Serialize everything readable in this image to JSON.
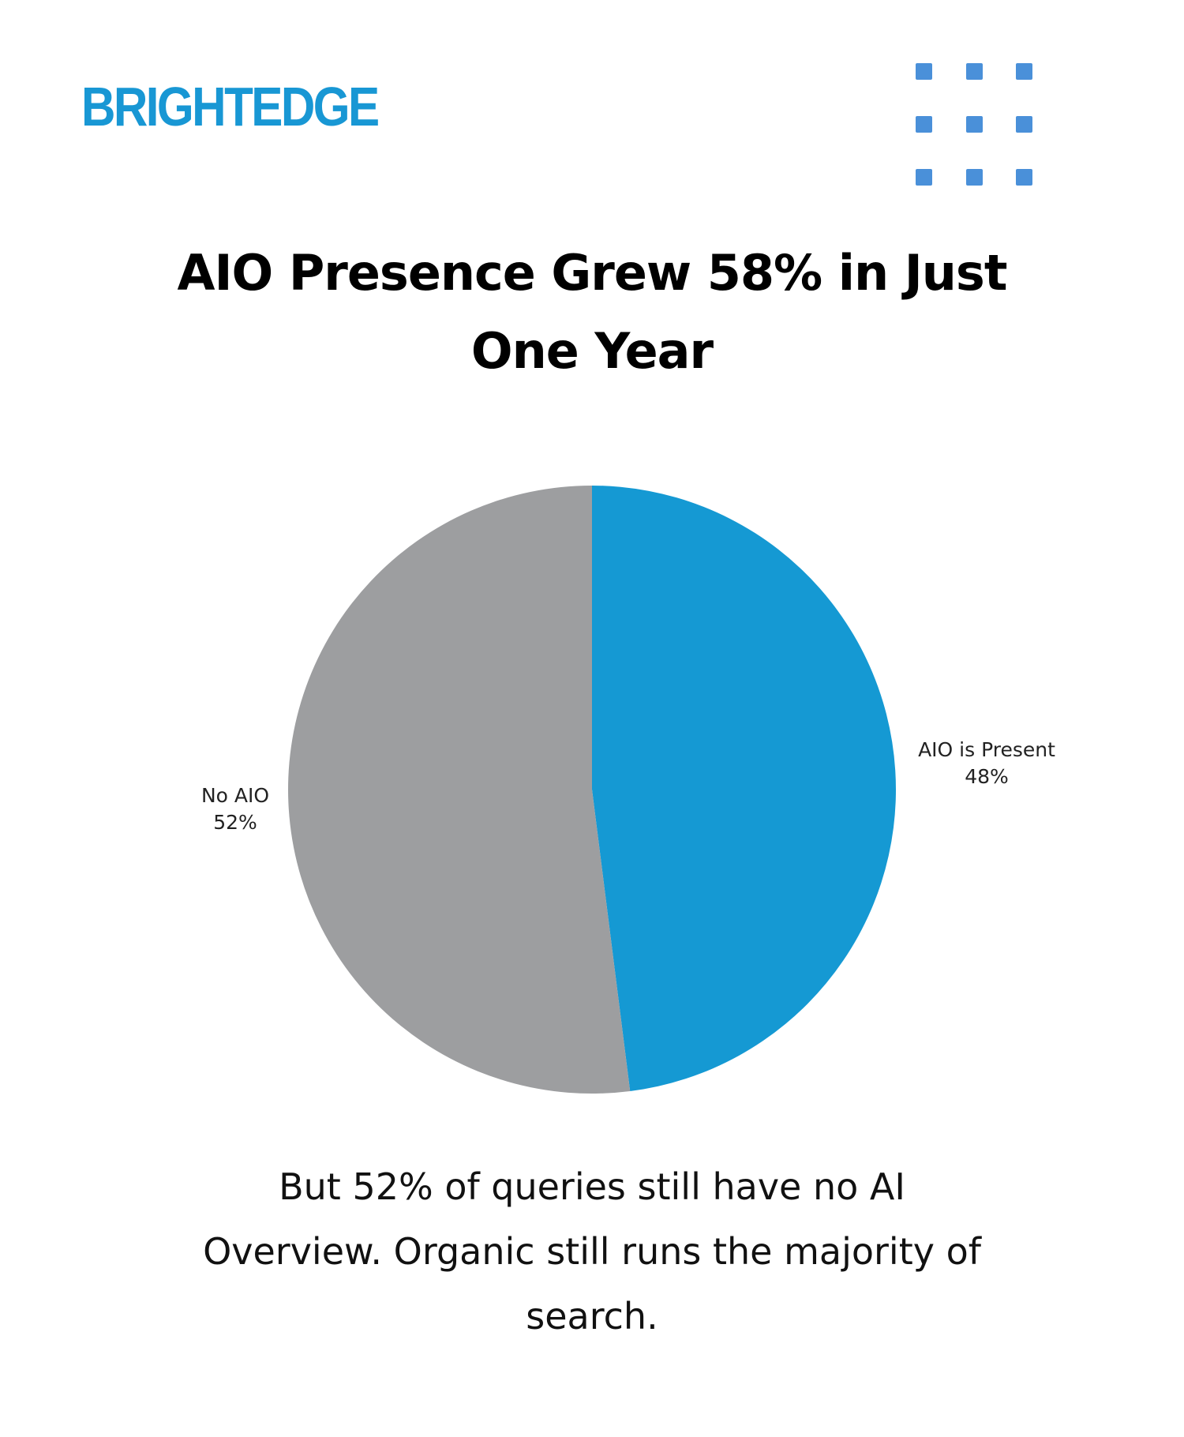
{
  "brand": {
    "logo_text": "BRIGHTEDGE",
    "logo_color": "#1897d4",
    "dot_color": "#4a90d9"
  },
  "header": {
    "title_line1": "AIO Presence Grew 58% in Just",
    "title_line2": "One Year"
  },
  "chart_data": {
    "type": "pie",
    "title": "AIO Presence Grew 58% in Just One Year",
    "slices": [
      {
        "label": "AIO is Present",
        "value": 48,
        "value_label": "48%",
        "color": "#1599d3"
      },
      {
        "label": "No AIO",
        "value": 52,
        "value_label": "52%",
        "color": "#9d9ea0"
      }
    ],
    "start": "12 o'clock",
    "direction": "clockwise"
  },
  "footer": {
    "caption_line1": "But 52% of queries still have no AI",
    "caption_line2": "Overview. Organic still runs the majority of",
    "caption_line3": "search."
  }
}
